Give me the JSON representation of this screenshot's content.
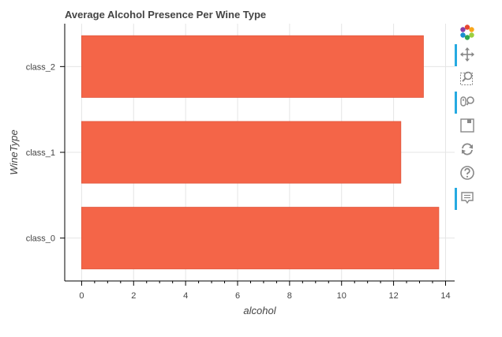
{
  "chart_data": {
    "type": "bar",
    "orientation": "horizontal",
    "title": "Average Alcohol Presence Per Wine Type",
    "xlabel": "alcohol",
    "ylabel": "WineType",
    "categories": [
      "class_0",
      "class_1",
      "class_2"
    ],
    "values": [
      13.74,
      12.28,
      13.15
    ],
    "xlim": [
      -0.65,
      14.35
    ],
    "xticks": [
      0,
      2,
      4,
      6,
      8,
      10,
      12,
      14
    ],
    "grid": true,
    "bar_color": "#f46548"
  },
  "toolbar": {
    "tools": [
      {
        "name": "bokeh-logo-icon",
        "active": false
      },
      {
        "name": "pan-icon",
        "active": true
      },
      {
        "name": "box-zoom-icon",
        "active": false
      },
      {
        "name": "wheel-zoom-icon",
        "active": true
      },
      {
        "name": "save-icon",
        "active": false
      },
      {
        "name": "reset-icon",
        "active": false
      },
      {
        "name": "help-icon",
        "active": false
      },
      {
        "name": "hover-icon",
        "active": true
      }
    ]
  }
}
